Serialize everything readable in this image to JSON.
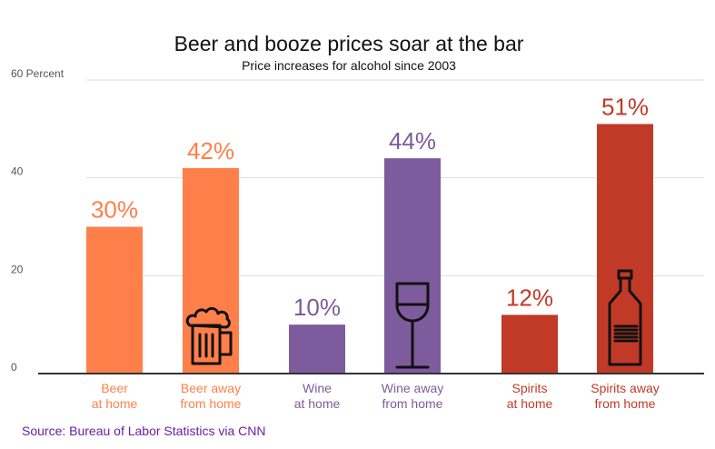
{
  "chart_data": {
    "type": "bar",
    "title": "Beer and booze prices soar at the bar",
    "subtitle": "Price increases for alcohol since 2003",
    "ylim": [
      0,
      60
    ],
    "yticks": [
      0,
      20,
      40,
      60
    ],
    "ytick_labels": [
      "0",
      "20",
      "40",
      "60 Percent"
    ],
    "grid": true,
    "bars": [
      {
        "category": "Beer at home",
        "line1": "Beer",
        "line2": "at home",
        "value": 30,
        "label": "30%",
        "color": "#ff7f4a",
        "icon": ""
      },
      {
        "category": "Beer away from home",
        "line1": "Beer away",
        "line2": "from home",
        "value": 42,
        "label": "42%",
        "color": "#ff7f4a",
        "icon": "beer-mug-icon"
      },
      {
        "category": "Wine at home",
        "line1": "Wine",
        "line2": "at home",
        "value": 10,
        "label": "10%",
        "color": "#7d5b9c",
        "icon": ""
      },
      {
        "category": "Wine away from home",
        "line1": "Wine away",
        "line2": "from home",
        "value": 44,
        "label": "44%",
        "color": "#7d5b9c",
        "icon": "wine-glass-icon"
      },
      {
        "category": "Spirits at home",
        "line1": "Spirits",
        "line2": "at home",
        "value": 12,
        "label": "12%",
        "color": "#c13a27",
        "icon": ""
      },
      {
        "category": "Spirits away from home",
        "line1": "Spirits away",
        "line2": "from home",
        "value": 51,
        "label": "51%",
        "color": "#c13a27",
        "icon": "liquor-bottle-icon"
      }
    ]
  },
  "source": "Source: Bureau of Labor Statistics via CNN",
  "colors": {
    "source": "#6b1fa0",
    "beer": "#ff7f4a",
    "wine": "#7d5b9c",
    "spirits": "#c13a27"
  }
}
